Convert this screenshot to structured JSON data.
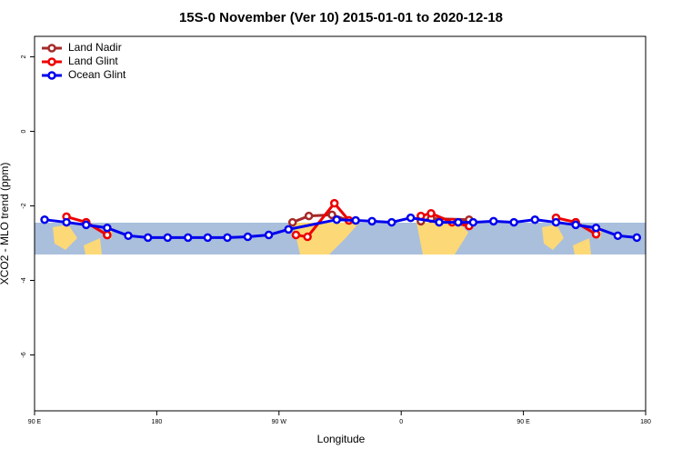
{
  "chart_data": {
    "type": "line",
    "title": "15S-0 November (Ver 10)   2015-01-01 to 2020-12-18",
    "xlabel": "Longitude",
    "ylabel": "XCO2 - MLO trend (ppm)",
    "xlim": [
      90,
      540
    ],
    "xticks": [
      {
        "value": 90,
        "label": "90 E"
      },
      180,
      {
        "value": 270,
        "label": "90 W"
      },
      {
        "value": 360,
        "label": "0"
      },
      {
        "value": 450,
        "label": "90 E"
      },
      {
        "value": 540,
        "label": "180"
      }
    ],
    "ylim": [
      -7.5,
      2.55
    ],
    "yticks": [
      2,
      0,
      -2,
      -4,
      -6
    ],
    "legend": "top-left",
    "series": [
      {
        "name": "Land Nadir",
        "color": "#a52a2a",
        "x": [
          128,
          143.5,
          280,
          292,
          309,
          321.5,
          374.5,
          382,
          410,
          488.5,
          503.5
        ],
        "values": [
          -2.44,
          -2.78,
          -2.44,
          -2.27,
          -2.24,
          -2.39,
          -2.41,
          -2.34,
          -2.37,
          -2.44,
          -2.76
        ]
      },
      {
        "name": "Land Glint",
        "color": "#ee0000",
        "x": [
          113.5,
          128,
          143.5,
          282.5,
          291,
          310.8,
          321.5,
          374.5,
          382,
          397.5,
          410,
          474,
          488.5,
          503.5
        ],
        "values": [
          -2.29,
          -2.44,
          -2.78,
          -2.78,
          -2.83,
          -1.93,
          -2.39,
          -2.27,
          -2.2,
          -2.44,
          -2.54,
          -2.32,
          -2.44,
          -2.76
        ]
      },
      {
        "name": "Ocean Glint",
        "color": "#0000ee",
        "x": [
          97.4,
          113.5,
          128,
          143.5,
          159,
          173.5,
          188,
          203,
          217.5,
          232,
          247,
          262.5,
          277,
          312.5,
          326.5,
          338.5,
          353,
          367,
          388,
          402,
          413,
          428,
          443,
          458.5,
          474,
          488.5,
          503.5,
          519.5,
          533.5
        ],
        "values": [
          -2.37,
          -2.44,
          -2.51,
          -2.59,
          -2.8,
          -2.85,
          -2.85,
          -2.85,
          -2.85,
          -2.85,
          -2.83,
          -2.78,
          -2.63,
          -2.37,
          -2.39,
          -2.41,
          -2.44,
          -2.32,
          -2.44,
          -2.44,
          -2.44,
          -2.41,
          -2.44,
          -2.37,
          -2.44,
          -2.51,
          -2.59,
          -2.8,
          -2.85
        ]
      }
    ]
  }
}
